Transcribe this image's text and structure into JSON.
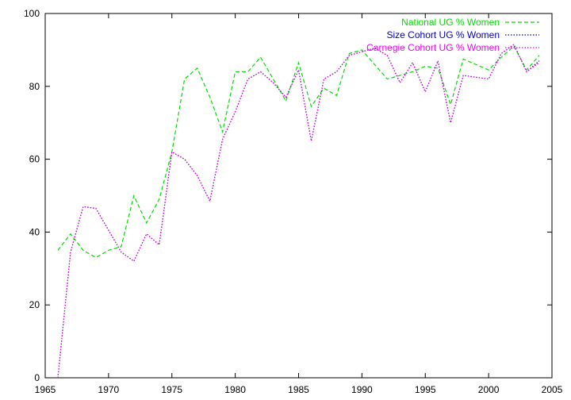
{
  "chart_data": {
    "type": "line",
    "title": "",
    "xlabel": "",
    "ylabel": "",
    "xlim": [
      1965,
      2005
    ],
    "ylim": [
      0,
      100
    ],
    "xticks": [
      1965,
      1970,
      1975,
      1980,
      1985,
      1990,
      1995,
      2000,
      2005
    ],
    "yticks": [
      0,
      20,
      40,
      60,
      80,
      100
    ],
    "x_tick_labels": [
      "1965",
      "1970",
      "1975",
      "1980",
      "1985",
      "1990",
      "1995",
      "2000",
      "2005"
    ],
    "y_tick_labels": [
      "0",
      "20",
      "40",
      "60",
      "80",
      "100"
    ],
    "grid": false,
    "legend_position": "top-right",
    "x": [
      1966,
      1967,
      1968,
      1969,
      1970,
      1971,
      1972,
      1973,
      1974,
      1975,
      1976,
      1977,
      1978,
      1979,
      1980,
      1981,
      1982,
      1983,
      1984,
      1985,
      1986,
      1987,
      1988,
      1989,
      1990,
      1991,
      1992,
      1993,
      1994,
      1995,
      1996,
      1997,
      1998,
      1999,
      2000,
      2001,
      2002,
      2003,
      2004
    ],
    "series": [
      {
        "name": "National UG % Women",
        "color": "#00dd00",
        "dash": "dashed",
        "values": [
          35,
          39.5,
          35,
          33,
          35,
          36,
          50,
          42.5,
          49,
          62,
          82,
          85,
          77,
          67.5,
          84,
          84,
          88,
          82,
          76,
          86.5,
          74.5,
          79.5,
          77.5,
          89,
          90,
          86,
          82,
          83,
          84,
          85.5,
          85,
          75,
          87.5,
          86,
          84.5,
          88,
          91,
          84.5,
          88.5
        ]
      },
      {
        "name": "Size Cohort UG % Women",
        "color": "#0000cc",
        "dash": "dotted",
        "values": [
          0,
          34.5,
          47,
          46.5,
          40.5,
          34.5,
          32,
          39.5,
          36.5,
          62,
          60,
          55.5,
          48.5,
          65.5,
          73,
          82,
          84,
          81,
          77,
          84.5,
          65,
          82,
          84,
          88.5,
          89.5,
          90.5,
          88.5,
          81,
          86.5,
          78.5,
          87,
          70,
          83,
          82.5,
          82,
          89,
          91.5,
          84,
          87
        ]
      },
      {
        "name": "Carnegie Cohort UG % Women",
        "color": "#ee00ee",
        "dash": "dotted",
        "values": [
          0,
          34.5,
          47,
          46.5,
          40.5,
          34.5,
          32,
          39.5,
          36.5,
          62,
          60,
          55.5,
          48.5,
          65.5,
          73,
          82,
          84,
          81,
          77,
          84.5,
          65,
          82,
          84,
          88.5,
          89.5,
          90.5,
          88.5,
          81,
          86.5,
          78.5,
          87,
          70,
          83,
          82.5,
          82,
          89,
          91.5,
          84,
          86.5
        ]
      }
    ]
  }
}
